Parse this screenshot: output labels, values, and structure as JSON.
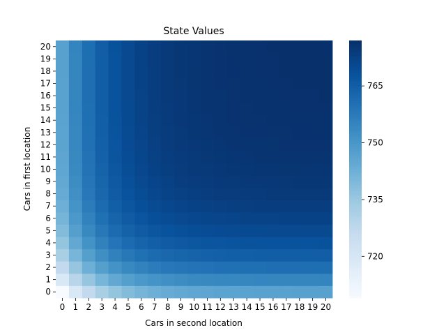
{
  "chart_data": {
    "type": "heatmap",
    "title": "State Values",
    "xlabel": "Cars in second location",
    "ylabel": "Cars in first location",
    "x_categories": [
      "0",
      "1",
      "2",
      "3",
      "4",
      "5",
      "6",
      "7",
      "8",
      "9",
      "10",
      "11",
      "12",
      "13",
      "14",
      "15",
      "16",
      "17",
      "18",
      "19",
      "20"
    ],
    "y_categories": [
      "0",
      "1",
      "2",
      "3",
      "4",
      "5",
      "6",
      "7",
      "8",
      "9",
      "10",
      "11",
      "12",
      "13",
      "14",
      "15",
      "16",
      "17",
      "18",
      "19",
      "20"
    ],
    "y_order": "bottom-to-top",
    "value_model": {
      "min": 709,
      "max": 777,
      "notes": "approximate cell values estimated from color; V(i,j) with i = cars in first location, j = cars in second location"
    },
    "colorbar": {
      "min": 709,
      "max": 777,
      "ticks": [
        720,
        735,
        750,
        765
      ],
      "colormap": "Blues"
    }
  }
}
